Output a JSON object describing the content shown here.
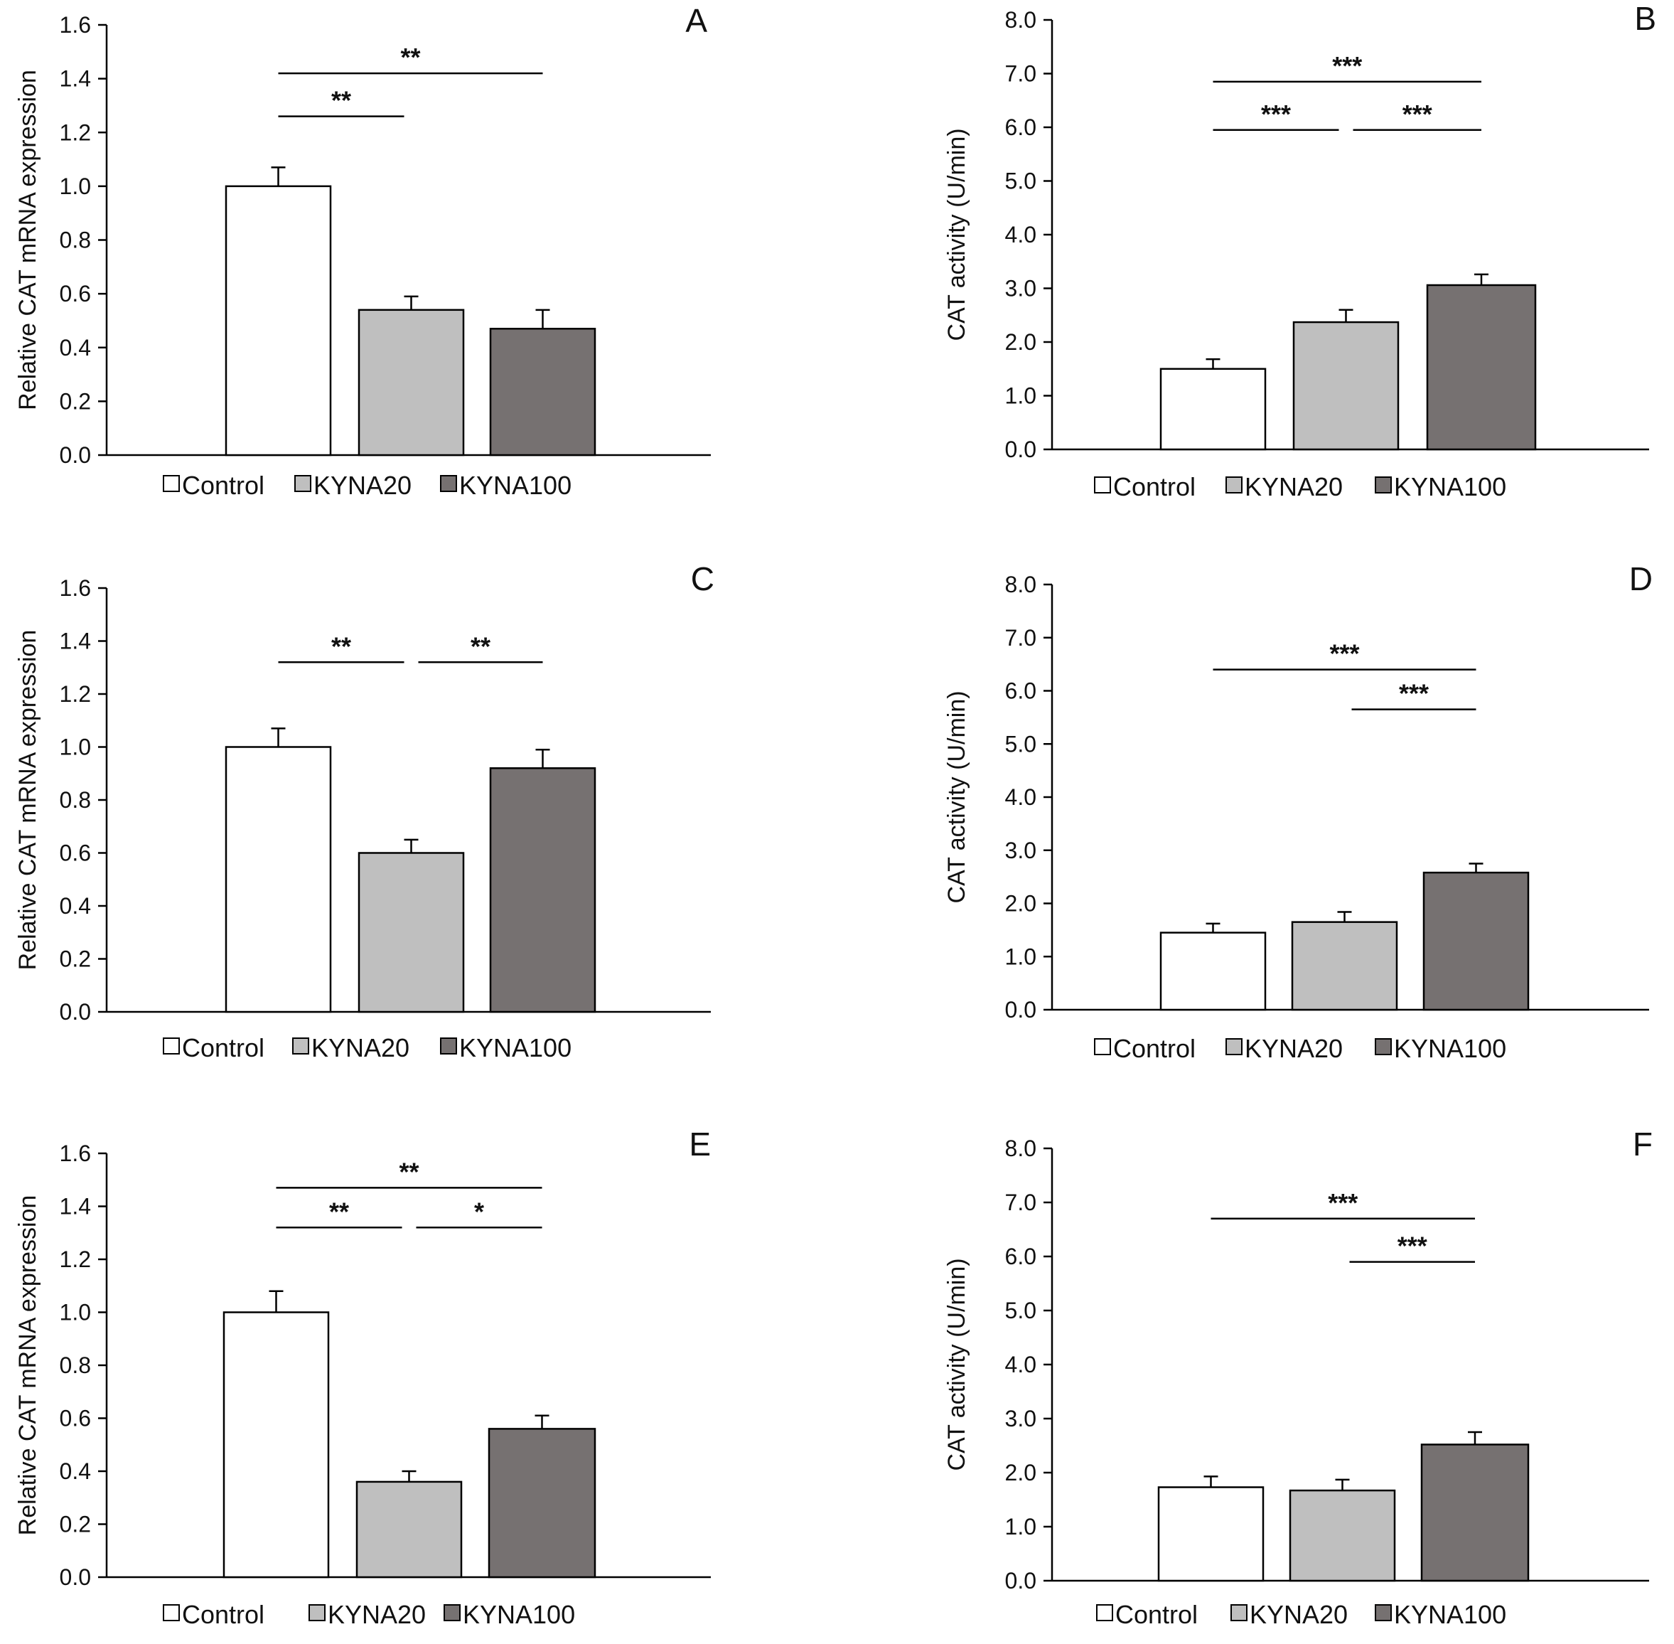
{
  "legend": {
    "entries": [
      "Control",
      "KYNA20",
      "KYNA100"
    ],
    "colors": [
      "#ffffff",
      "#bfbfbf",
      "#767171"
    ],
    "placement": "bottom-center"
  },
  "chart_data": [
    {
      "type": "bar",
      "panel": "A",
      "categories": [
        "Control",
        "KYNA20",
        "KYNA100"
      ],
      "values": [
        1.0,
        0.54,
        0.47
      ],
      "errors": [
        0.07,
        0.05,
        0.07
      ],
      "ylabel": "Relative CAT mRNA expression",
      "ylim": [
        0,
        1.6
      ],
      "ytick_step": 0.2,
      "yticks": [
        "0.0",
        "0.2",
        "0.4",
        "0.6",
        "0.8",
        "1.0",
        "1.2",
        "1.4",
        "1.6"
      ],
      "grid": false,
      "significance": [
        {
          "from": 0,
          "to": 2,
          "label": "**",
          "y": 1.42
        },
        {
          "from": 0,
          "to": 1,
          "label": "**",
          "y": 1.26
        }
      ]
    },
    {
      "type": "bar",
      "panel": "B",
      "categories": [
        "Control",
        "KYNA20",
        "KYNA100"
      ],
      "values": [
        1.5,
        2.37,
        3.06
      ],
      "errors": [
        0.18,
        0.23,
        0.2
      ],
      "ylabel": "CAT activity (U/min)",
      "ylim": [
        0,
        8
      ],
      "ytick_step": 1,
      "yticks": [
        "0.0",
        "1.0",
        "2.0",
        "3.0",
        "4.0",
        "5.0",
        "6.0",
        "7.0",
        "8.0"
      ],
      "grid": false,
      "significance": [
        {
          "from": 0,
          "to": 2,
          "label": "***",
          "y": 6.85
        },
        {
          "from": 0,
          "to": 1,
          "label": "***",
          "y": 5.95
        },
        {
          "from": 1,
          "to": 2,
          "label": "***",
          "y": 5.95
        }
      ]
    },
    {
      "type": "bar",
      "panel": "C",
      "categories": [
        "Control",
        "KYNA20",
        "KYNA100"
      ],
      "values": [
        1.0,
        0.6,
        0.92
      ],
      "errors": [
        0.07,
        0.05,
        0.07
      ],
      "ylabel": "Relative CAT mRNA expression",
      "ylim": [
        0,
        1.6
      ],
      "ytick_step": 0.2,
      "yticks": [
        "0.0",
        "0.2",
        "0.4",
        "0.6",
        "0.8",
        "1.0",
        "1.2",
        "1.4",
        "1.6"
      ],
      "grid": false,
      "significance": [
        {
          "from": 0,
          "to": 1,
          "label": "**",
          "y": 1.32
        },
        {
          "from": 1,
          "to": 2,
          "label": "**",
          "y": 1.32
        }
      ]
    },
    {
      "type": "bar",
      "panel": "D",
      "categories": [
        "Control",
        "KYNA20",
        "KYNA100"
      ],
      "values": [
        1.45,
        1.65,
        2.58
      ],
      "errors": [
        0.17,
        0.19,
        0.17
      ],
      "ylabel": "CAT activity (U/min)",
      "ylim": [
        0,
        8
      ],
      "ytick_step": 1,
      "yticks": [
        "0.0",
        "1.0",
        "2.0",
        "3.0",
        "4.0",
        "5.0",
        "6.0",
        "7.0",
        "8.0"
      ],
      "grid": false,
      "significance": [
        {
          "from": 0,
          "to": 2,
          "label": "***",
          "y": 6.4
        },
        {
          "from": 1,
          "to": 2,
          "label": "***",
          "y": 5.65
        }
      ]
    },
    {
      "type": "bar",
      "panel": "E",
      "categories": [
        "Control",
        "KYNA20",
        "KYNA100"
      ],
      "values": [
        1.0,
        0.36,
        0.56
      ],
      "errors": [
        0.08,
        0.04,
        0.05
      ],
      "ylabel": "Relative CAT mRNA expression",
      "ylim": [
        0,
        1.6
      ],
      "ytick_step": 0.2,
      "yticks": [
        "0.0",
        "0.2",
        "0.4",
        "0.6",
        "0.8",
        "1.0",
        "1.2",
        "1.4",
        "1.6"
      ],
      "grid": false,
      "significance": [
        {
          "from": 0,
          "to": 2,
          "label": "**",
          "y": 1.47
        },
        {
          "from": 0,
          "to": 1,
          "label": "**",
          "y": 1.32
        },
        {
          "from": 1,
          "to": 2,
          "label": "*",
          "y": 1.32
        }
      ]
    },
    {
      "type": "bar",
      "panel": "F",
      "categories": [
        "Control",
        "KYNA20",
        "KYNA100"
      ],
      "values": [
        1.73,
        1.67,
        2.52
      ],
      "errors": [
        0.2,
        0.2,
        0.23
      ],
      "ylabel": "CAT activity (U/min)",
      "ylim": [
        0,
        8
      ],
      "ytick_step": 1,
      "yticks": [
        "0.0",
        "1.0",
        "2.0",
        "3.0",
        "4.0",
        "5.0",
        "6.0",
        "7.0",
        "8.0"
      ],
      "grid": false,
      "significance": [
        {
          "from": 0,
          "to": 2,
          "label": "***",
          "y": 6.7
        },
        {
          "from": 1,
          "to": 2,
          "label": "***",
          "y": 5.9
        }
      ]
    }
  ]
}
